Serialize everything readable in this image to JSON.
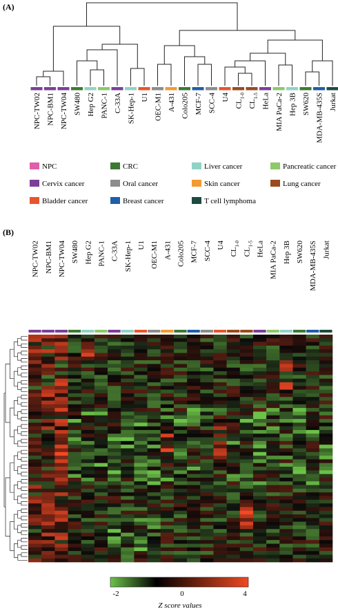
{
  "figure": {
    "panel_a_label": "(A)",
    "panel_b_label": "(B)"
  },
  "colors": {
    "NPC": "#e05fa8",
    "Cervix cancer": "#7b3f98",
    "CRC": "#3c7a34",
    "Oral cancer": "#8c8c8c",
    "Liver cancer": "#8fd3c6",
    "Skin cancer": "#f39a31",
    "Pancreatic cancer": "#8cc96a",
    "Lung cancer": "#9a4a20",
    "Bladder cancer": "#e8552b",
    "Breast cancer": "#1f5ea8",
    "T cell lymphoma": "#1e4b3f"
  },
  "legend": [
    {
      "label": "NPC",
      "key": "NPC"
    },
    {
      "label": "CRC",
      "key": "CRC"
    },
    {
      "label": "Liver cancer",
      "key": "Liver cancer"
    },
    {
      "label": "Pancreatic cancer",
      "key": "Pancreatic cancer"
    },
    {
      "label": "Cervix cancer",
      "key": "Cervix cancer"
    },
    {
      "label": "Oral cancer",
      "key": "Oral cancer"
    },
    {
      "label": "Skin cancer",
      "key": "Skin cancer"
    },
    {
      "label": "Lung cancer",
      "key": "Lung cancer"
    },
    {
      "label": "Bladder cancer",
      "key": "Bladder cancer"
    },
    {
      "label": "Breast cancer",
      "key": "Breast cancer"
    },
    {
      "label": "T cell lymphoma",
      "key": "T cell lymphoma"
    }
  ],
  "samples_a": [
    {
      "name": "NPC-TW02",
      "type": "Cervix cancer"
    },
    {
      "name": "NPC-BM1",
      "type": "Cervix cancer"
    },
    {
      "name": "NPC-TW04",
      "type": "Cervix cancer"
    },
    {
      "name": "SW480",
      "type": "CRC"
    },
    {
      "name": "Hep G2",
      "type": "Liver cancer"
    },
    {
      "name": "PANC-1",
      "type": "Pancreatic cancer"
    },
    {
      "name": "C-33A",
      "type": "Cervix cancer"
    },
    {
      "name": "SK-Hep-1",
      "type": "Liver cancer"
    },
    {
      "name": "U1",
      "type": "Bladder cancer"
    },
    {
      "name": "OEC-M1",
      "type": "Oral cancer"
    },
    {
      "name": "A-431",
      "type": "Skin cancer"
    },
    {
      "name": "Colo205",
      "type": "CRC"
    },
    {
      "name": "MCF-7",
      "type": "Breast cancer"
    },
    {
      "name": "SCC-4",
      "type": "Oral cancer"
    },
    {
      "name": "U4",
      "type": "Bladder cancer"
    },
    {
      "name": "CL1-0",
      "type": "Lung cancer"
    },
    {
      "name": "CL1-5",
      "type": "Lung cancer"
    },
    {
      "name": "HeLa",
      "type": "Cervix cancer"
    },
    {
      "name": "MIA PaCa-2",
      "type": "Pancreatic cancer"
    },
    {
      "name": "Hep 3B",
      "type": "Liver cancer"
    },
    {
      "name": "SW620",
      "type": "CRC"
    },
    {
      "name": "MDA-MB-435S",
      "type": "Breast cancer"
    },
    {
      "name": "Jurkat",
      "type": "T cell lymphoma"
    }
  ],
  "samples_b": [
    {
      "name": "NPC-TW02",
      "type": "Cervix cancer"
    },
    {
      "name": "NPC-BM1",
      "type": "Cervix cancer"
    },
    {
      "name": "NPC-TW04",
      "type": "Cervix cancer"
    },
    {
      "name": "SW480",
      "type": "CRC"
    },
    {
      "name": "Hep G2",
      "type": "Liver cancer"
    },
    {
      "name": "PANC-1",
      "type": "Pancreatic cancer"
    },
    {
      "name": "C-33A",
      "type": "Cervix cancer"
    },
    {
      "name": "SK-Hep-1",
      "type": "Liver cancer"
    },
    {
      "name": "U1",
      "type": "Bladder cancer"
    },
    {
      "name": "OEC-M1",
      "type": "Oral cancer"
    },
    {
      "name": "A-431",
      "type": "Skin cancer"
    },
    {
      "name": "Colo205",
      "type": "CRC"
    },
    {
      "name": "MCF-7",
      "type": "Breast cancer"
    },
    {
      "name": "SCC-4",
      "type": "Oral cancer"
    },
    {
      "name": "U4",
      "type": "Bladder cancer"
    },
    {
      "name": "CL1-0",
      "type": "Lung cancer"
    },
    {
      "name": "CL1-5",
      "type": "Lung cancer"
    },
    {
      "name": "HeLa",
      "type": "Cervix cancer"
    },
    {
      "name": "MIA PaCa-2",
      "type": "Pancreatic cancer"
    },
    {
      "name": "Hep 3B",
      "type": "Liver cancer"
    },
    {
      "name": "SW620",
      "type": "CRC"
    },
    {
      "name": "MDA-MB-435S",
      "type": "Breast cancer"
    },
    {
      "name": "Jurkat",
      "type": "T cell lymphoma"
    }
  ],
  "colorbar": {
    "ticks": [
      "-2",
      "0",
      "4"
    ],
    "label": "Z score values",
    "min": -2,
    "max": 4
  }
}
